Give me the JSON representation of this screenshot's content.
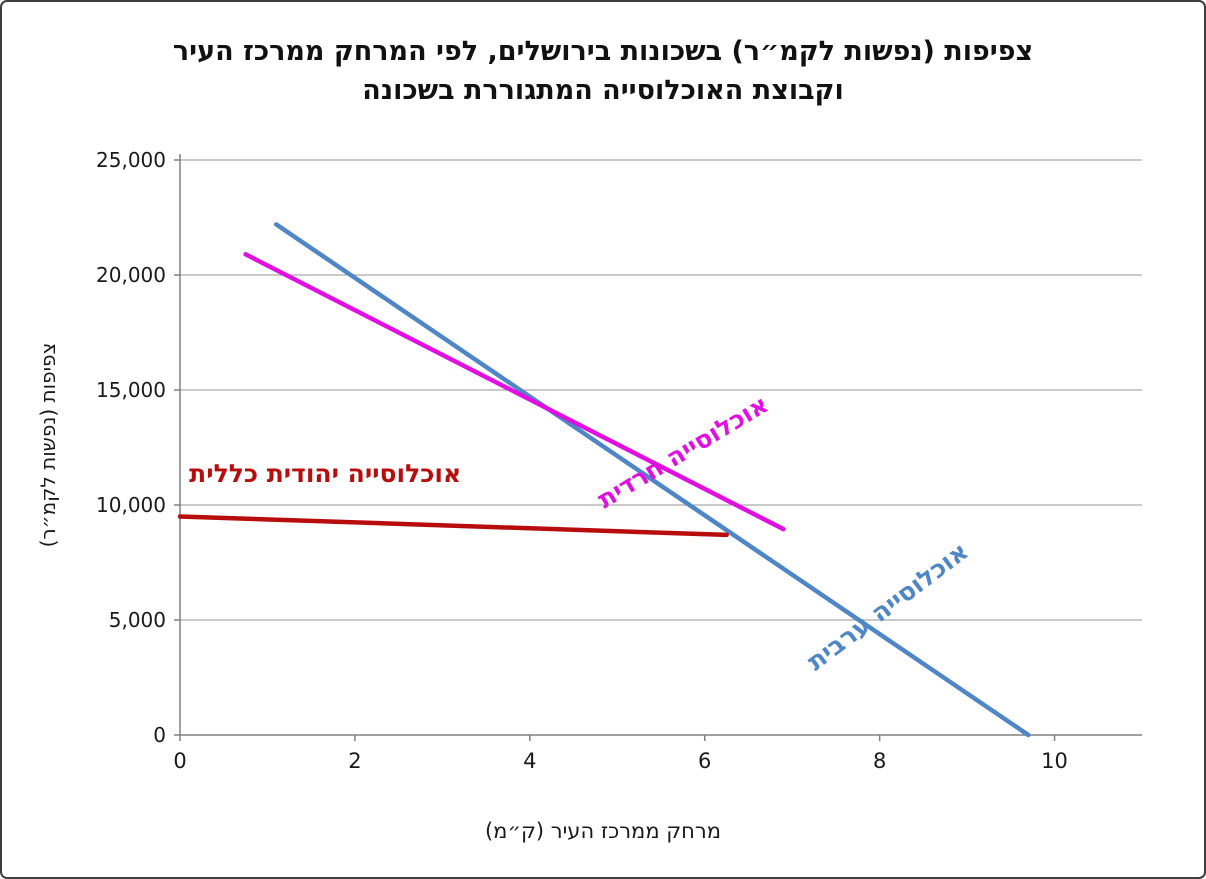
{
  "frame": {
    "background": "#ffffff",
    "border_color": "#3f3f3f"
  },
  "chart_data": {
    "type": "line",
    "title": "צפיפות (נפשות לקמ״ר) בשכונות בירושלים, לפי המרחק ממרכז העיר וקבוצת האוכלוסייה המתגוררת בשכונה",
    "xlabel": "מרחק ממרכז העיר (ק״מ)",
    "ylabel": "צפיפות (נפשות לקמ״ר)",
    "xlim": [
      0,
      11
    ],
    "ylim": [
      0,
      25000
    ],
    "x_ticks": [
      0,
      2,
      4,
      6,
      8,
      10
    ],
    "x_tick_labels": [
      "0",
      "2",
      "4",
      "6",
      "8",
      "10"
    ],
    "y_ticks": [
      0,
      5000,
      10000,
      15000,
      20000,
      25000
    ],
    "y_tick_labels": [
      "0",
      "5,000",
      "10,000",
      "15,000",
      "20,000",
      "25,000"
    ],
    "grid": "horizontal",
    "legend_position": "none",
    "series": [
      {
        "name": "אוכלוסייה ערבית",
        "color": "#4f86c6",
        "points": [
          [
            1.1,
            22200
          ],
          [
            9.7,
            0
          ]
        ]
      },
      {
        "name": "אוכלוסייה חרדית",
        "color": "#e10fe1",
        "points": [
          [
            0.75,
            20900
          ],
          [
            6.9,
            8950
          ]
        ]
      },
      {
        "name": "אוכלוסייה יהודית כללית",
        "color": "#b80d0d",
        "points": [
          [
            0,
            9500
          ],
          [
            6.25,
            8700
          ]
        ]
      }
    ],
    "annotations": [
      {
        "text": "אוכלוסייה חרדית",
        "color": "#e10fe1",
        "x": 5.8,
        "y": 12000,
        "angle": -31
      },
      {
        "text": "אוכלוסייה ערבית",
        "color": "#4f86c6",
        "x": 8.15,
        "y": 5300,
        "angle": -37
      },
      {
        "text": "אוכלוסייה יהודית כללית",
        "color": "#b80d0d",
        "x": 1.66,
        "y": 11000,
        "angle": 0
      }
    ],
    "style": {
      "grid_color": "#969696",
      "axis_color": "#808080",
      "tick_label_color": "#1a1a1a",
      "title_color": "#111111",
      "line_width": 4.5
    }
  }
}
